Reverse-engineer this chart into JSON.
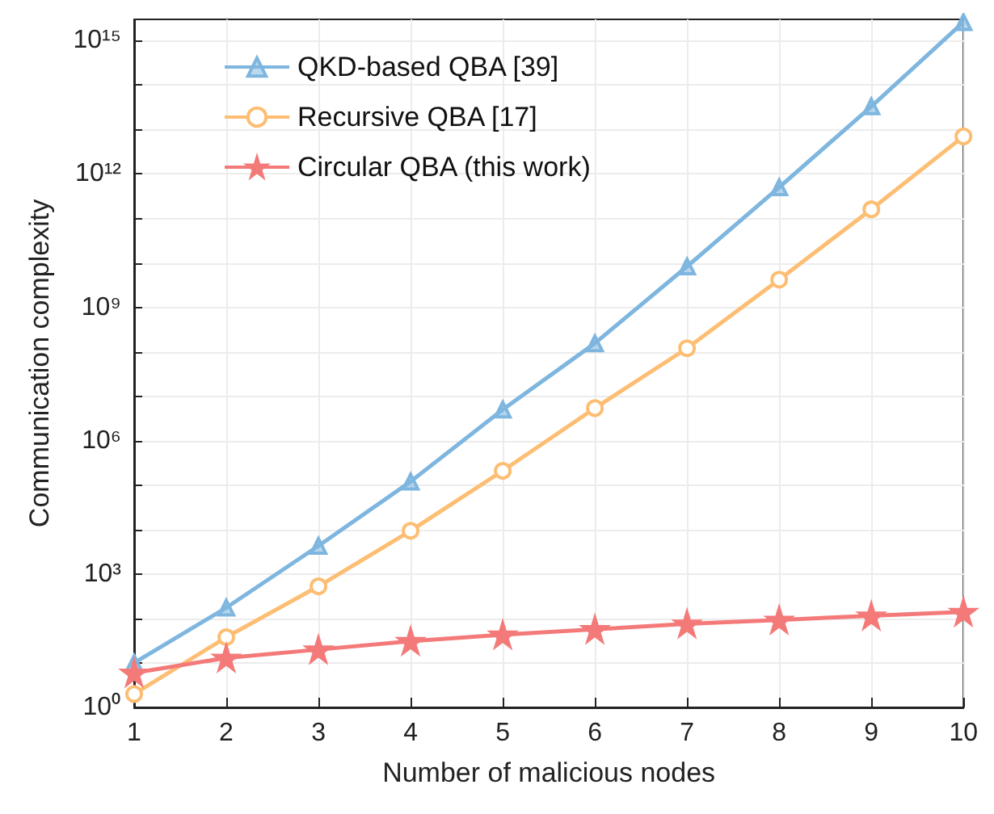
{
  "chart_data": {
    "type": "line",
    "xlabel": "Number of malicious nodes",
    "ylabel": "Communication complexity",
    "x": [
      1,
      2,
      3,
      4,
      5,
      6,
      7,
      8,
      9,
      10
    ],
    "series": [
      {
        "name": "QKD-based QBA [39]",
        "color": "#7eb6df",
        "marker": "triangle",
        "values": [
          10,
          175,
          4300,
          120000,
          5000000,
          155000000,
          8300000000,
          500000000000,
          33000000000000,
          2600000000000000
        ]
      },
      {
        "name": "Recursive QBA [17]",
        "color": "#fdbe73",
        "marker": "circle",
        "values": [
          2,
          38,
          530,
          9400,
          210000,
          5400000,
          120000000,
          4200000000,
          160000000000,
          7000000000000
        ]
      },
      {
        "name": "Circular QBA (this work)",
        "color": "#f47a7a",
        "marker": "star",
        "values": [
          6,
          13,
          20,
          31,
          43,
          57,
          76,
          93,
          115,
          140
        ]
      }
    ],
    "log": "y",
    "xlim": [
      1,
      10
    ],
    "xticks": [
      1,
      2,
      3,
      4,
      5,
      6,
      7,
      8,
      9,
      10
    ],
    "ylim": [
      1,
      3000000000000000
    ],
    "yticks": [
      {
        "value": 1,
        "label": "10⁰"
      },
      {
        "value": 10,
        "label": null
      },
      {
        "value": 100,
        "label": null
      },
      {
        "value": 1000,
        "label": "10³"
      },
      {
        "value": 10000,
        "label": null
      },
      {
        "value": 100000,
        "label": null
      },
      {
        "value": 1000000,
        "label": "10⁶"
      },
      {
        "value": 10000000,
        "label": null
      },
      {
        "value": 100000000,
        "label": null
      },
      {
        "value": 1000000000,
        "label": "10⁹"
      },
      {
        "value": 10000000000,
        "label": null
      },
      {
        "value": 100000000000,
        "label": null
      },
      {
        "value": 1000000000000,
        "label": "10¹²"
      },
      {
        "value": 10000000000000,
        "label": null
      },
      {
        "value": 100000000000000,
        "label": null
      },
      {
        "value": 1000000000000000,
        "label": "10¹⁵"
      }
    ],
    "grid": true,
    "legend": "top left",
    "line_style": "solid"
  }
}
